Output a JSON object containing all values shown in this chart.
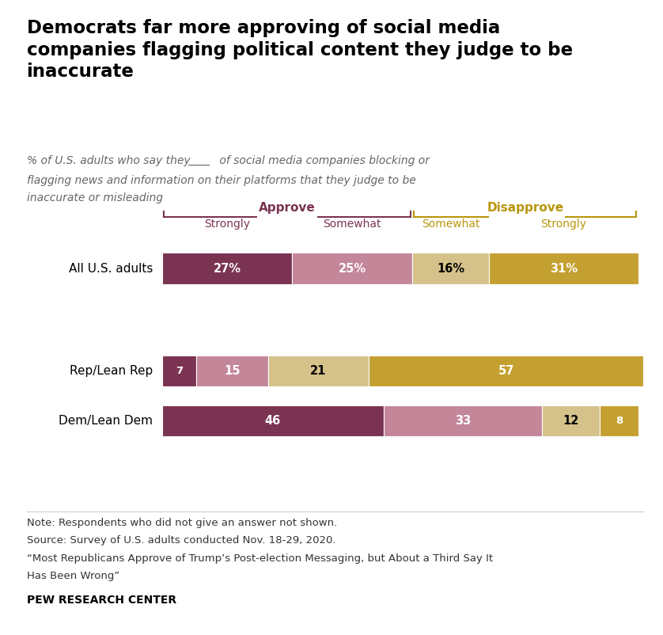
{
  "title": "Democrats far more approving of social media\ncompanies flagging political content they judge to be\ninaccurate",
  "subtitle_line1": "% of U.S. adults who say they ",
  "subtitle_blank": "____",
  "subtitle_line2": " of social media companies blocking or",
  "subtitle_line3": "flagging news and information on their platforms that they judge to be",
  "subtitle_line4": "inaccurate or misleading",
  "categories": [
    "All U.S. adults",
    "Rep/Lean Rep",
    "Dem/Lean Dem"
  ],
  "data": {
    "All U.S. adults": [
      27,
      25,
      16,
      31
    ],
    "Rep/Lean Rep": [
      7,
      15,
      21,
      57
    ],
    "Dem/Lean Dem": [
      46,
      33,
      12,
      8
    ]
  },
  "colors": [
    "#7B3352",
    "#C4879A",
    "#D4C28A",
    "#C4A030"
  ],
  "approve_color": "#7B3352",
  "disapprove_color": "#B8960C",
  "column_labels": [
    "Strongly",
    "Somewhat",
    "Somewhat",
    "Strongly"
  ],
  "note1": "Note: Respondents who did not give an answer not shown.",
  "note2": "Source: Survey of U.S. adults conducted Nov. 18-29, 2020.",
  "note3": "“Most Republicans Approve of Trump’s Post-election Messaging, but About a Third Say It",
  "note4": "Has Been Wrong”",
  "source_bold": "PEW RESEARCH CENTER",
  "background_color": "#FFFFFF"
}
